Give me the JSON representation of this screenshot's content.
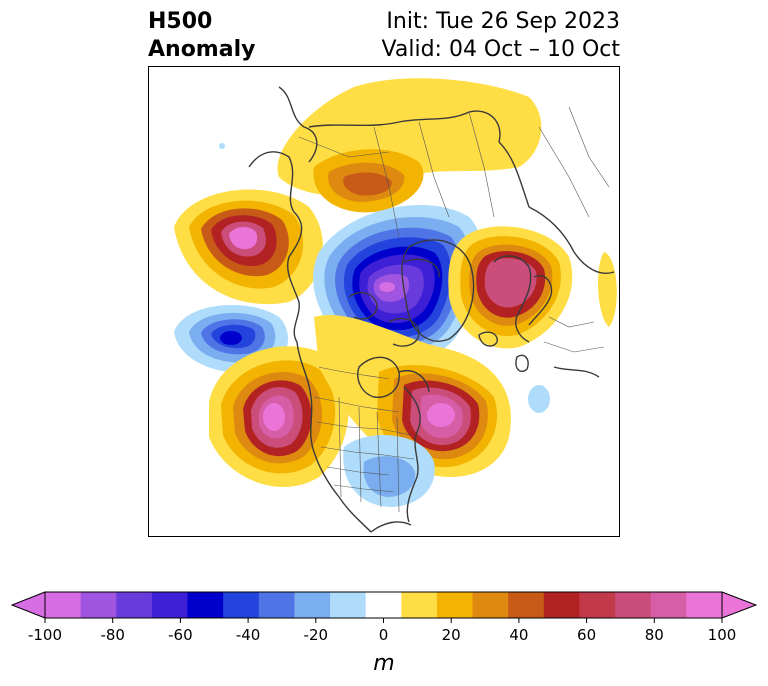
{
  "title": {
    "line1": "H500",
    "line2": "Anomaly",
    "init": "Init: Tue 26 Sep 2023",
    "valid": "Valid: 04 Oct – 10 Oct"
  },
  "colorbar": {
    "unit": "m",
    "ticks": [
      "-100",
      "-80",
      "-60",
      "-40",
      "-20",
      "0",
      "20",
      "40",
      "60",
      "80",
      "100"
    ],
    "colors": [
      "#d66de3",
      "#9f55e0",
      "#6a3bdc",
      "#3d1fd6",
      "#0000cd",
      "#2244dd",
      "#4f74e6",
      "#7aaef0",
      "#aedcfa",
      "#ffffff",
      "#ffdd44",
      "#f2b400",
      "#de8a10",
      "#c85a18",
      "#b22222",
      "#c23a4a",
      "#ca4d7a",
      "#d65ea6",
      "#ea74d8"
    ]
  },
  "map": {
    "anomalies": [
      {
        "name": "positive-anomaly-east-pacific",
        "sign": "positive",
        "value": 100
      },
      {
        "name": "negative-anomaly-pacific",
        "sign": "negative",
        "value": -60
      },
      {
        "name": "negative-anomaly-arctic",
        "sign": "negative",
        "value": -100
      },
      {
        "name": "positive-anomaly-siberia",
        "sign": "positive",
        "value": 50
      },
      {
        "name": "positive-anomaly-northwest-us",
        "sign": "positive",
        "value": 100
      },
      {
        "name": "positive-anomaly-eastern-canada",
        "sign": "positive",
        "value": 90
      },
      {
        "name": "positive-anomaly-scandinavia",
        "sign": "positive",
        "value": 70
      },
      {
        "name": "negative-anomaly-central-us",
        "sign": "negative",
        "value": -20
      }
    ]
  }
}
